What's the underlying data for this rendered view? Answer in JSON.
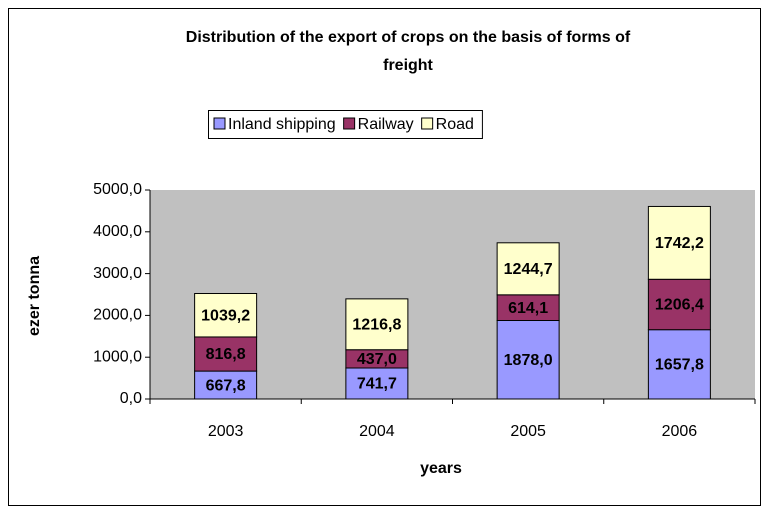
{
  "chart_data": {
    "type": "stacked_bar",
    "title": "Distribution of the export of crops on the basis of forms of freight",
    "x_label": "years",
    "y_label": "ezer tonna",
    "categories": [
      "2003",
      "2004",
      "2005",
      "2006"
    ],
    "series": [
      {
        "name": "Inland shipping",
        "color": "#9999ff",
        "values": [
          667.8,
          741.7,
          1878.0,
          1657.8
        ],
        "value_labels": [
          "667,8",
          "741,7",
          "1878,0",
          "1657,8"
        ]
      },
      {
        "name": "Railway",
        "color": "#993366",
        "values": [
          816.8,
          437.0,
          614.1,
          1206.4
        ],
        "value_labels": [
          "816,8",
          "437,0",
          "614,1",
          "1206,4"
        ]
      },
      {
        "name": "Road",
        "color": "#ffffcc",
        "values": [
          1039.2,
          1216.8,
          1244.7,
          1742.2
        ],
        "value_labels": [
          "1039,2",
          "1216,8",
          "1244,7",
          "1742,2"
        ]
      }
    ],
    "ylim": [
      0,
      5000
    ],
    "yticks": [
      {
        "value": 0,
        "label": "0,0"
      },
      {
        "value": 1000,
        "label": "1000,0"
      },
      {
        "value": 2000,
        "label": "2000,0"
      },
      {
        "value": 3000,
        "label": "3000,0"
      },
      {
        "value": 4000,
        "label": "4000,0"
      },
      {
        "value": 5000,
        "label": "5000,0"
      }
    ],
    "grid": false,
    "legend": "top",
    "plot_background": "#c0c0c0"
  }
}
